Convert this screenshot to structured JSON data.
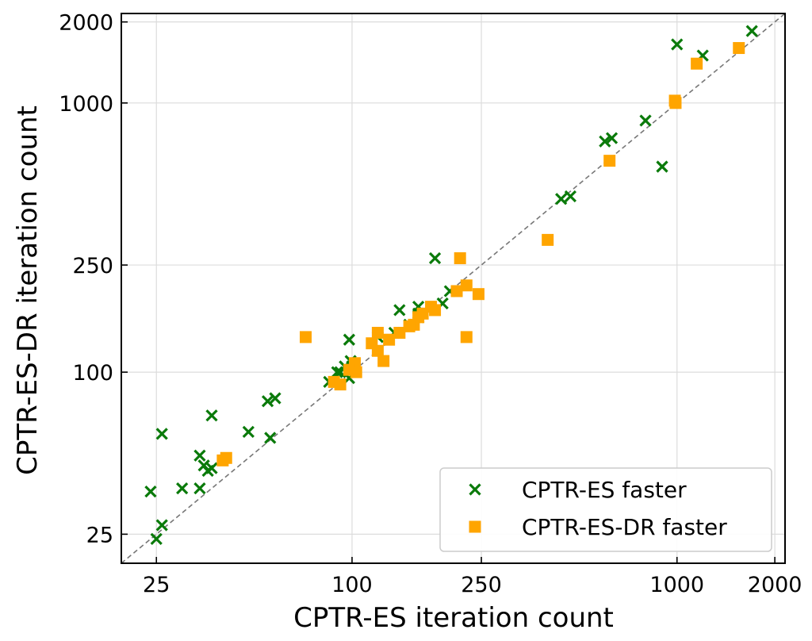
{
  "chart_data": {
    "type": "scatter",
    "xlabel": "CPTR-ES iteration count",
    "ylabel": "CPTR-ES-DR iteration count",
    "xscale": "log",
    "yscale": "log",
    "xlim": [
      19.5,
      2150
    ],
    "ylim": [
      19.5,
      2150
    ],
    "xticks": [
      25,
      100,
      250,
      1000,
      2000
    ],
    "yticks": [
      25,
      100,
      250,
      1000,
      2000
    ],
    "grid": true,
    "reference_line": "y = x",
    "legend": {
      "position": "bottom-right"
    },
    "series": [
      {
        "name": "CPTR-ES faster",
        "marker": "x",
        "color": "#0a7a0a",
        "points": [
          [
            1700,
            1850
          ],
          [
            1000,
            1650
          ],
          [
            1200,
            1500
          ],
          [
            800,
            860
          ],
          [
            630,
            740
          ],
          [
            600,
            720
          ],
          [
            900,
            580
          ],
          [
            470,
            450
          ],
          [
            440,
            440
          ],
          [
            180,
            265
          ],
          [
            200,
            200
          ],
          [
            190,
            180
          ],
          [
            160,
            175
          ],
          [
            160,
            165
          ],
          [
            150,
            150
          ],
          [
            140,
            170
          ],
          [
            160,
            160
          ],
          [
            135,
            140
          ],
          [
            120,
            135
          ],
          [
            98,
            132
          ],
          [
            99,
            110
          ],
          [
            95,
            105
          ],
          [
            100,
            105
          ],
          [
            92,
            100
          ],
          [
            90,
            100
          ],
          [
            98,
            95
          ],
          [
            85,
            92
          ],
          [
            58,
            80
          ],
          [
            55,
            78
          ],
          [
            37,
            69
          ],
          [
            48,
            60
          ],
          [
            26,
            59
          ],
          [
            56,
            57
          ],
          [
            34,
            49
          ],
          [
            35,
            45
          ],
          [
            37,
            44
          ],
          [
            36,
            43
          ],
          [
            30,
            37
          ],
          [
            34,
            37
          ],
          [
            24,
            36
          ],
          [
            26,
            27
          ],
          [
            25,
            24
          ]
        ]
      },
      {
        "name": "CPTR-ES-DR faster",
        "marker": "square",
        "color": "#ffa500",
        "points": [
          [
            1550,
            1600
          ],
          [
            1150,
            1400
          ],
          [
            985,
            1020
          ],
          [
            990,
            1000
          ],
          [
            620,
            610
          ],
          [
            400,
            310
          ],
          [
            215,
            265
          ],
          [
            225,
            210
          ],
          [
            210,
            200
          ],
          [
            245,
            195
          ],
          [
            175,
            175
          ],
          [
            180,
            170
          ],
          [
            165,
            165
          ],
          [
            160,
            160
          ],
          [
            155,
            150
          ],
          [
            150,
            148
          ],
          [
            140,
            140
          ],
          [
            130,
            132
          ],
          [
            120,
            140
          ],
          [
            115,
            128
          ],
          [
            120,
            120
          ],
          [
            125,
            110
          ],
          [
            102,
            108
          ],
          [
            98,
            102
          ],
          [
            103,
            100
          ],
          [
            88,
            92
          ],
          [
            92,
            90
          ],
          [
            72,
            135
          ],
          [
            225,
            135
          ],
          [
            40,
            47
          ],
          [
            41,
            48
          ]
        ]
      }
    ]
  }
}
